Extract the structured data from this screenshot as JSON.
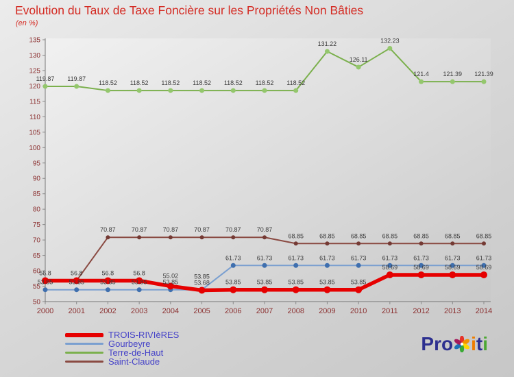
{
  "title": "Evolution du Taux de Taxe Foncière sur les Propriétés Non Bâties",
  "subtitle": "(en %)",
  "title_color": "#d42a22",
  "axis_label_color": "#8b3030",
  "point_label_color": "#3a3a3a",
  "legend_text_color": "#4643c8",
  "chart_data": {
    "type": "line",
    "title": "Evolution du Taux de Taxe Foncière sur les Propriétés Non Bâties",
    "subtitle": "(en %)",
    "categories": [
      "2000",
      "2001",
      "2002",
      "2003",
      "2004",
      "2005",
      "2006",
      "2007",
      "2008",
      "2009",
      "2010",
      "2011",
      "2012",
      "2013",
      "2014"
    ],
    "ylim": [
      50,
      135
    ],
    "ytick_step": 5,
    "grid": false,
    "legend_position": "bottom-left",
    "series": [
      {
        "name": "TROIS-RIVIèRES",
        "color": "#e60000",
        "marker_color": "#e60000",
        "line_width": 5.5,
        "marker_r": 5,
        "values": [
          56.8,
          56.8,
          56.8,
          56.8,
          55.02,
          53.68,
          53.85,
          53.85,
          53.85,
          53.85,
          53.85,
          58.69,
          58.69,
          58.69,
          58.69
        ]
      },
      {
        "name": "Gourbeyre",
        "color": "#7a9fd0",
        "marker_color": "#3f6fae",
        "line_width": 2,
        "marker_r": 3.5,
        "values": [
          53.85,
          53.85,
          53.85,
          53.85,
          53.85,
          53.85,
          61.73,
          61.73,
          61.73,
          61.73,
          61.73,
          61.73,
          61.73,
          61.73,
          61.73
        ]
      },
      {
        "name": "Terre-de-Haut",
        "color": "#7bb04d",
        "marker_color": "#94c76d",
        "line_width": 2,
        "marker_r": 3.5,
        "values": [
          119.87,
          119.87,
          118.52,
          118.52,
          118.52,
          118.52,
          118.52,
          118.52,
          118.52,
          131.22,
          126.11,
          132.23,
          121.4,
          121.39,
          121.39
        ]
      },
      {
        "name": "Saint-Claude",
        "color": "#8a4a42",
        "marker_color": "#743a34",
        "line_width": 2,
        "marker_r": 3,
        "values": [
          56.8,
          56.8,
          70.87,
          70.87,
          70.87,
          70.87,
          70.87,
          70.87,
          68.85,
          68.85,
          68.85,
          68.85,
          68.85,
          68.85,
          68.85
        ]
      }
    ]
  },
  "logo": {
    "pre": "Pro",
    "i1": "i",
    "t": "t",
    "i2": "i",
    "colors": {
      "blue": "#2c2f8f",
      "orange": "#ef7d00",
      "green": "#4ca832",
      "pinwheel": [
        "#e63329",
        "#f39200",
        "#ffd500",
        "#3aaa35",
        "#1d70b7",
        "#a3195b"
      ]
    }
  }
}
